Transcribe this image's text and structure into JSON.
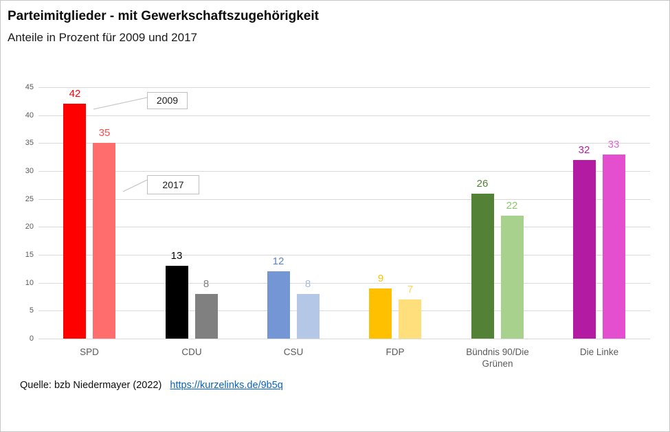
{
  "header": {
    "title": "Parteimitglieder - mit Gewerkschaftszugehörigkeit",
    "subtitle": "Anteile in Prozent für 2009 und 2017"
  },
  "footer": {
    "source_label": "Quelle: bzb Niedermayer (2022)",
    "source_link": "https://kurzelinks.de/9b5q",
    "link_color": "#0563C1"
  },
  "chart_data": {
    "type": "bar",
    "title": "Parteimitglieder - mit Gewerkschaftszugehörigkeit",
    "subtitle": "Anteile in Prozent für 2009 und 2017",
    "categories": [
      "SPD",
      "CDU",
      "CSU",
      "FDP",
      "Bündnis 90/Die Grünen",
      "Die Linke"
    ],
    "series": [
      {
        "name": "2009",
        "values": [
          42,
          13,
          12,
          9,
          26,
          32
        ],
        "bar_colors": [
          "#FF0000",
          "#000000",
          "#7496D4",
          "#FFC000",
          "#538135",
          "#B21BA2"
        ],
        "label_colors": [
          "#FF0000",
          "#000000",
          "#5B84C4",
          "#FFC000",
          "#538135",
          "#B21BA2"
        ]
      },
      {
        "name": "2017",
        "values": [
          35,
          8,
          8,
          7,
          22,
          33
        ],
        "bar_colors": [
          "#FF6D6D",
          "#808080",
          "#B4C7E7",
          "#FFDE7C",
          "#A9D18E",
          "#E44FD0"
        ],
        "label_colors": [
          "#FF4B4B",
          "#808080",
          "#A3BCE2",
          "#FFD34D",
          "#8CC46A",
          "#E85FD6"
        ]
      }
    ],
    "ylim": [
      0,
      45
    ],
    "yticks": [
      0,
      5,
      10,
      15,
      20,
      25,
      30,
      35,
      40,
      45
    ],
    "grid": true,
    "legend_position": "callouts-inside-plot",
    "annotations": [
      {
        "text": "2009",
        "series": "2009"
      },
      {
        "text": "2017",
        "series": "2017"
      }
    ],
    "styles": {
      "grid_color": "#D9D9D9",
      "tick_color": "#595959",
      "category_color": "#595959",
      "callout_border": "#BFBFBF"
    }
  }
}
